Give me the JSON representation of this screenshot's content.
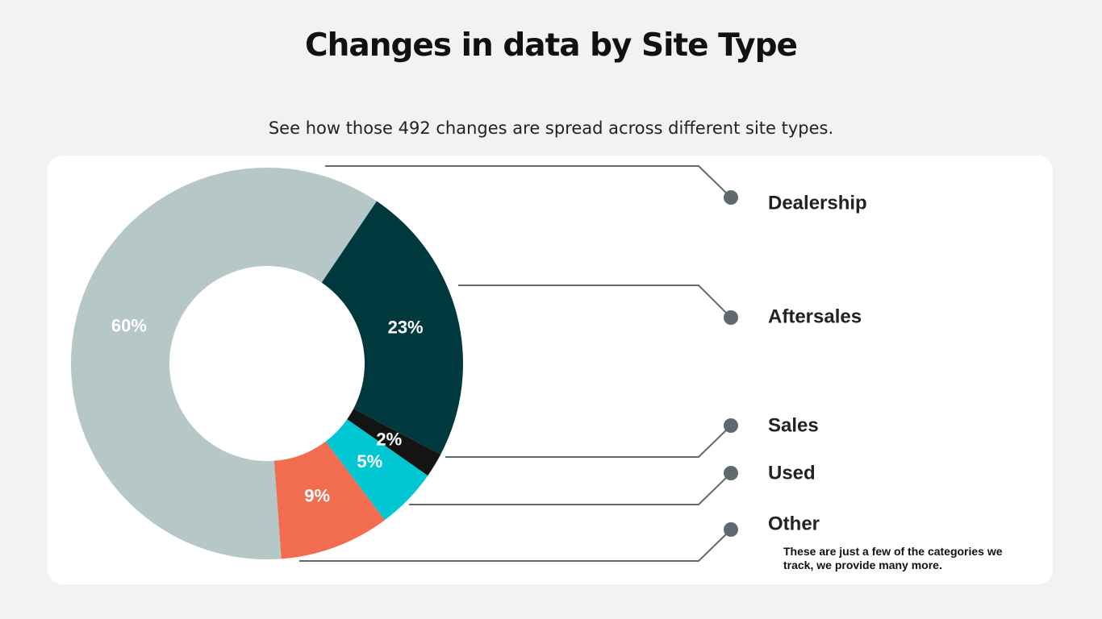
{
  "header": {
    "title": "Changes in data by Site Type",
    "subtitle": "See how those 492 changes are spread across different site types."
  },
  "note": "These are just a few of the categories we track, we provide many more.",
  "chart_data": {
    "type": "pie",
    "donut": true,
    "categories": [
      "Aftersales",
      "Sales",
      "Used",
      "Other",
      "Dealership"
    ],
    "values": [
      23,
      2,
      5,
      9,
      60
    ],
    "labels": [
      "23%",
      "2%",
      "5%",
      "9%",
      "60%"
    ],
    "colors": [
      "#00393d",
      "#141414",
      "#00c7d1",
      "#f26c50",
      "#b5c7c6"
    ],
    "legend_placement": "right",
    "leader_color": "#5e6a70"
  }
}
